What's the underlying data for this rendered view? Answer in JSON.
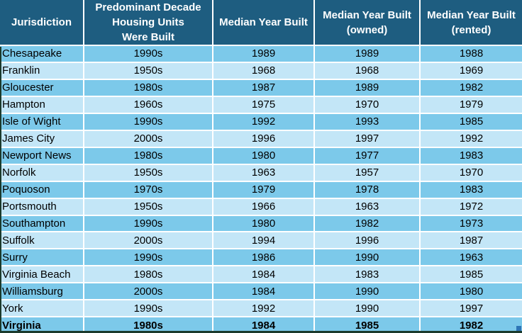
{
  "colors": {
    "header_bg": "#1E5D80",
    "header_text": "#FFFFFF",
    "row_odd": "#7CC9EA",
    "row_even": "#C3E6F7",
    "gridline": "#FFFFFF",
    "body_text": "#000000",
    "selection_border": "#1B3A2C",
    "fill_handle": "#2E75B6"
  },
  "table": {
    "columns": [
      {
        "label": "Jurisdiction"
      },
      {
        "label": "Predominant Decade\nHousing Units\nWere Built"
      },
      {
        "label": "Median Year Built"
      },
      {
        "label": "Median Year Built\n(owned)"
      },
      {
        "label": "Median Year Built\n(rented)"
      }
    ],
    "rows": [
      {
        "cells": [
          "Chesapeake",
          "1990s",
          "1989",
          "1989",
          "1988"
        ],
        "bold": false
      },
      {
        "cells": [
          "Franklin",
          "1950s",
          "1968",
          "1968",
          "1969"
        ],
        "bold": false
      },
      {
        "cells": [
          "Gloucester",
          "1980s",
          "1987",
          "1989",
          "1982"
        ],
        "bold": false
      },
      {
        "cells": [
          "Hampton",
          "1960s",
          "1975",
          "1970",
          "1979"
        ],
        "bold": false
      },
      {
        "cells": [
          "Isle of Wight",
          "1990s",
          "1992",
          "1993",
          "1985"
        ],
        "bold": false
      },
      {
        "cells": [
          "James City",
          "2000s",
          "1996",
          "1997",
          "1992"
        ],
        "bold": false
      },
      {
        "cells": [
          "Newport News",
          "1980s",
          "1980",
          "1977",
          "1983"
        ],
        "bold": false
      },
      {
        "cells": [
          "Norfolk",
          "1950s",
          "1963",
          "1957",
          "1970"
        ],
        "bold": false
      },
      {
        "cells": [
          "Poquoson",
          "1970s",
          "1979",
          "1978",
          "1983"
        ],
        "bold": false
      },
      {
        "cells": [
          "Portsmouth",
          "1950s",
          "1966",
          "1963",
          "1972"
        ],
        "bold": false
      },
      {
        "cells": [
          "Southampton",
          "1990s",
          "1980",
          "1982",
          "1973"
        ],
        "bold": false
      },
      {
        "cells": [
          "Suffolk",
          "2000s",
          "1994",
          "1996",
          "1987"
        ],
        "bold": false
      },
      {
        "cells": [
          "Surry",
          "1990s",
          "1986",
          "1990",
          "1963"
        ],
        "bold": false
      },
      {
        "cells": [
          "Virginia Beach",
          "1980s",
          "1984",
          "1983",
          "1985"
        ],
        "bold": false
      },
      {
        "cells": [
          "Williamsburg",
          "2000s",
          "1984",
          "1990",
          "1980"
        ],
        "bold": false
      },
      {
        "cells": [
          "York",
          "1990s",
          "1992",
          "1990",
          "1997"
        ],
        "bold": false
      },
      {
        "cells": [
          "Virginia",
          "1980s",
          "1984",
          "1985",
          "1982"
        ],
        "bold": true
      }
    ]
  },
  "chart_data": {
    "type": "table",
    "title": "",
    "columns": [
      "Jurisdiction",
      "Predominant Decade Housing Units Were Built",
      "Median Year Built",
      "Median Year Built (owned)",
      "Median Year Built (rented)"
    ],
    "rows": [
      [
        "Chesapeake",
        "1990s",
        1989,
        1989,
        1988
      ],
      [
        "Franklin",
        "1950s",
        1968,
        1968,
        1969
      ],
      [
        "Gloucester",
        "1980s",
        1987,
        1989,
        1982
      ],
      [
        "Hampton",
        "1960s",
        1975,
        1970,
        1979
      ],
      [
        "Isle of Wight",
        "1990s",
        1992,
        1993,
        1985
      ],
      [
        "James City",
        "2000s",
        1996,
        1997,
        1992
      ],
      [
        "Newport News",
        "1980s",
        1980,
        1977,
        1983
      ],
      [
        "Norfolk",
        "1950s",
        1963,
        1957,
        1970
      ],
      [
        "Poquoson",
        "1970s",
        1979,
        1978,
        1983
      ],
      [
        "Portsmouth",
        "1950s",
        1966,
        1963,
        1972
      ],
      [
        "Southampton",
        "1990s",
        1980,
        1982,
        1973
      ],
      [
        "Suffolk",
        "2000s",
        1994,
        1996,
        1987
      ],
      [
        "Surry",
        "1990s",
        1986,
        1990,
        1963
      ],
      [
        "Virginia Beach",
        "1980s",
        1984,
        1983,
        1985
      ],
      [
        "Williamsburg",
        "2000s",
        1984,
        1990,
        1980
      ],
      [
        "York",
        "1990s",
        1992,
        1990,
        1997
      ],
      [
        "Virginia",
        "1980s",
        1984,
        1985,
        1982
      ]
    ]
  }
}
